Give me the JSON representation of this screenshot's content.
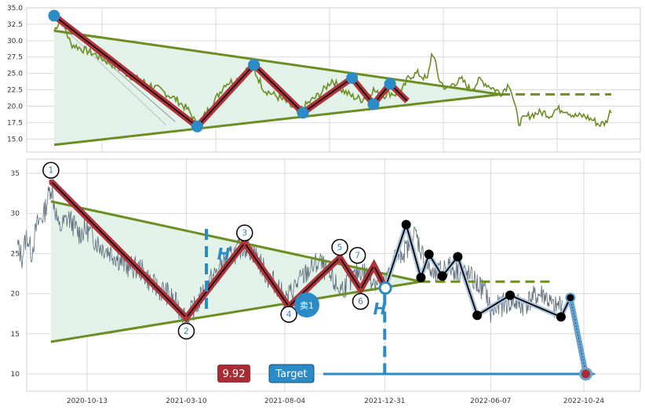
{
  "colors": {
    "price": "#6b8e23",
    "price_lower": "#5a6a7a",
    "trend": "#6b8e23",
    "zigzag_outer": "#b0323a",
    "zigzag_inner": "#000000",
    "pivot_top": "#2a8bc7",
    "fill": "#e3f2e8",
    "label_ring": "#000000",
    "label_text": "#2a8bc7",
    "forecast_line": "#000000",
    "forecast_halo": "#a9c4dc",
    "target_arrow": "#2a8bc7",
    "stop_fill": "#a92c34",
    "grid": "#d9d9d9",
    "frame": "#cfcfcf"
  },
  "chart_data": [
    {
      "type": "line",
      "panel": "top",
      "ylim": [
        13,
        35
      ],
      "yticks": [
        "15.0",
        "17.5",
        "20.0",
        "22.5",
        "25.0",
        "27.5",
        "30.0",
        "32.5",
        "35.0"
      ],
      "ytick_values": [
        15,
        17.5,
        20,
        22.5,
        25,
        27.5,
        30,
        32.5,
        35
      ],
      "grid": true,
      "series": [
        {
          "role": "price",
          "x": [
            "2020-08-17",
            "2020-08-27",
            "2020-09-10",
            "2020-09-25",
            "2020-10-13",
            "2020-10-30",
            "2020-11-16",
            "2020-12-02",
            "2020-12-18",
            "2021-01-07",
            "2021-01-25",
            "2021-02-10",
            "2021-02-26",
            "2021-03-05",
            "2021-03-12",
            "2021-03-22",
            "2021-04-07",
            "2021-04-22",
            "2021-05-10",
            "2021-05-26",
            "2021-06-02",
            "2021-06-17",
            "2021-07-05",
            "2021-07-21",
            "2021-08-04",
            "2021-08-20",
            "2021-09-07",
            "2021-09-23",
            "2021-10-07",
            "2021-10-22",
            "2021-11-05",
            "2021-11-22",
            "2021-12-02",
            "2021-12-16",
            "2021-12-31",
            "2022-01-12",
            "2022-01-25",
            "2022-02-08",
            "2022-02-15",
            "2022-02-25",
            "2022-03-08",
            "2022-03-18",
            "2022-03-30",
            "2022-04-11",
            "2022-04-25",
            "2022-05-10",
            "2022-05-25",
            "2022-06-07",
            "2022-06-20",
            "2022-07-04",
            "2022-07-18",
            "2022-07-29",
            "2022-08-04",
            "2022-08-12",
            "2022-08-26",
            "2022-09-09",
            "2022-09-23",
            "2022-10-07",
            "2022-10-14",
            "2022-10-24",
            "2022-11-01"
          ],
          "values": [
            31.5,
            33.5,
            29.5,
            28.8,
            28.0,
            27.0,
            26.0,
            24.8,
            24.0,
            23.0,
            22.0,
            21.0,
            19.5,
            18.5,
            16.8,
            18.5,
            21.0,
            23.5,
            24.0,
            26.0,
            25.5,
            22.5,
            21.5,
            20.5,
            19.0,
            20.5,
            22.0,
            24.0,
            22.5,
            21.5,
            21.0,
            22.5,
            21.5,
            22.0,
            21.8,
            24.5,
            25.0,
            24.0,
            28.5,
            24.0,
            22.5,
            23.5,
            24.0,
            22.5,
            24.0,
            23.0,
            22.0,
            23.5,
            17.5,
            18.5,
            19.0,
            19.0,
            18.5,
            19.5,
            19.5,
            18.5,
            18.5,
            17.8,
            17.2,
            17.5,
            19.5
          ]
        },
        {
          "role": "zigzag",
          "x": [
            "2020-08-17",
            "2021-03-12",
            "2021-06-02",
            "2021-08-12",
            "2021-10-22",
            "2021-11-22",
            "2021-12-16",
            "2022-01-10"
          ],
          "values": [
            33.8,
            16.9,
            26.3,
            19.0,
            24.3,
            20.3,
            23.4,
            20.8
          ]
        },
        {
          "role": "resistance",
          "x": [
            "2020-08-17",
            "2022-05-25"
          ],
          "values": [
            31.5,
            21.8
          ]
        },
        {
          "role": "support",
          "x": [
            "2020-08-17",
            "2022-05-25"
          ],
          "values": [
            14.1,
            21.8
          ]
        },
        {
          "role": "breakout_level",
          "x": [
            "2022-05-25",
            "2022-11-01"
          ],
          "values": [
            21.8,
            21.8
          ]
        }
      ]
    },
    {
      "type": "line",
      "panel": "bottom",
      "ylim": [
        7.7,
        37
      ],
      "yticks": [
        "10",
        "15",
        "20",
        "25",
        "30",
        "35"
      ],
      "ytick_values": [
        10,
        15,
        20,
        25,
        30,
        35
      ],
      "xticks": [
        "2020-10-13",
        "2021-03-10",
        "2021-08-04",
        "2021-12-31",
        "2022-06-07",
        "2022-10-24"
      ],
      "grid": true,
      "series": [
        {
          "role": "price",
          "x": [
            "2020-07-01",
            "2020-07-08",
            "2020-07-15",
            "2020-07-22",
            "2020-07-30",
            "2020-08-10",
            "2020-08-20",
            "2020-09-01",
            "2020-09-15",
            "2020-10-01",
            "2020-10-13",
            "2020-11-01",
            "2020-11-20",
            "2020-12-10",
            "2021-01-01",
            "2021-01-20",
            "2021-02-10",
            "2021-03-01",
            "2021-03-10",
            "2021-03-25",
            "2021-04-10",
            "2021-05-01",
            "2021-05-20",
            "2021-06-05",
            "2021-06-20",
            "2021-07-10",
            "2021-07-25",
            "2021-08-04",
            "2021-08-20",
            "2021-09-10",
            "2021-09-25",
            "2021-10-10",
            "2021-10-25",
            "2021-11-10",
            "2021-11-25",
            "2021-12-10",
            "2021-12-31",
            "2022-01-15",
            "2022-02-01",
            "2022-02-15",
            "2022-03-01",
            "2022-03-15",
            "2022-04-01",
            "2022-04-15",
            "2022-05-01",
            "2022-05-15",
            "2022-06-01",
            "2022-06-07",
            "2022-06-20",
            "2022-07-10",
            "2022-07-25",
            "2022-08-10",
            "2022-08-25",
            "2022-09-10",
            "2022-09-22"
          ],
          "values": [
            26.0,
            24.5,
            27.5,
            25.0,
            28.5,
            30.0,
            33.5,
            28.0,
            29.5,
            27.5,
            28.0,
            26.0,
            25.0,
            23.5,
            23.0,
            21.0,
            20.0,
            18.0,
            17.0,
            18.5,
            21.0,
            23.5,
            25.0,
            26.0,
            25.0,
            22.0,
            21.0,
            19.0,
            21.0,
            23.0,
            24.0,
            22.0,
            20.5,
            21.5,
            23.0,
            22.0,
            21.0,
            24.5,
            25.5,
            27.5,
            24.0,
            22.0,
            23.5,
            23.0,
            22.5,
            21.5,
            20.0,
            17.5,
            18.5,
            19.0,
            18.5,
            19.5,
            20.0,
            18.0,
            19.0
          ]
        },
        {
          "role": "zigzag",
          "x": [
            "2020-08-20",
            "2021-03-10",
            "2021-06-05",
            "2021-08-10",
            "2021-10-25",
            "2021-11-25",
            "2021-12-15",
            "2022-01-01"
          ],
          "values": [
            34.0,
            17.0,
            26.3,
            18.4,
            24.5,
            20.5,
            23.5,
            20.7
          ]
        },
        {
          "role": "resistance",
          "x": [
            "2020-08-20",
            "2022-02-23"
          ],
          "values": [
            31.5,
            21.5
          ]
        },
        {
          "role": "support",
          "x": [
            "2020-08-20",
            "2022-02-23"
          ],
          "values": [
            14.0,
            21.5
          ]
        },
        {
          "role": "breakout_level",
          "x": [
            "2022-02-23",
            "2022-09-10"
          ],
          "values": [
            21.5,
            21.5
          ]
        },
        {
          "role": "forecast",
          "x": [
            "2022-01-01",
            "2022-02-01",
            "2022-02-23",
            "2022-03-07",
            "2022-03-27",
            "2022-04-19",
            "2022-05-18",
            "2022-07-06",
            "2022-09-20",
            "2022-10-04",
            "2022-10-27"
          ],
          "values": [
            20.7,
            28.6,
            22.0,
            24.9,
            22.2,
            24.6,
            17.3,
            19.8,
            17.1,
            19.5,
            10.0
          ]
        },
        {
          "role": "target_path",
          "x": [
            "2022-10-04",
            "2022-10-27"
          ],
          "values": [
            19.5,
            10.0
          ]
        }
      ],
      "pivot_labels": [
        {
          "label": "1",
          "x": "2020-08-20",
          "value": 34.0
        },
        {
          "label": "2",
          "x": "2021-03-10",
          "value": 17.0
        },
        {
          "label": "3",
          "x": "2021-06-05",
          "value": 26.3
        },
        {
          "label": "4",
          "x": "2021-08-10",
          "value": 18.4
        },
        {
          "label": "5",
          "x": "2021-10-25",
          "value": 24.5
        },
        {
          "label": "6",
          "x": "2021-11-25",
          "value": 20.5
        },
        {
          "label": "7",
          "x": "2021-12-15",
          "value": 23.5
        }
      ],
      "annotations": {
        "height_label": "H",
        "sell_label": "卖1",
        "target_label": "Target",
        "stop_value": "9.92",
        "target_value": 10.0
      }
    }
  ]
}
